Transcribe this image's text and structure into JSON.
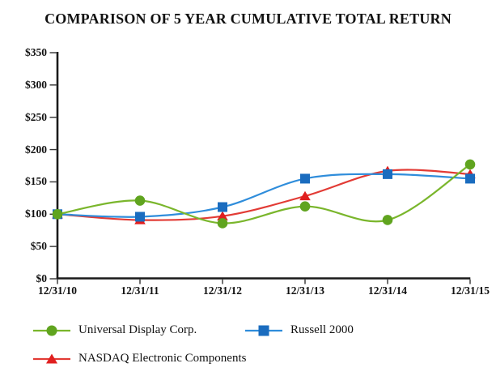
{
  "chart_data": {
    "type": "line",
    "title": "COMPARISON OF 5 YEAR CUMULATIVE TOTAL RETURN",
    "categories": [
      "12/31/10",
      "12/31/11",
      "12/31/12",
      "12/31/13",
      "12/31/14",
      "12/31/15"
    ],
    "series": [
      {
        "name": "Universal Display Corp.",
        "marker": "circle",
        "line_color": "#7ab62c",
        "marker_color": "#60a41f",
        "values": [
          100,
          121,
          86,
          112,
          91,
          177
        ]
      },
      {
        "name": "Russell 2000",
        "marker": "square",
        "line_color": "#2f8ddb",
        "marker_color": "#1a6cbf",
        "values": [
          100,
          96,
          111,
          155,
          162,
          155
        ]
      },
      {
        "name": "NASDAQ Electronic Components",
        "marker": "triangle",
        "line_color": "#e23b35",
        "marker_color": "#e01f1f",
        "values": [
          100,
          91,
          97,
          128,
          167,
          162
        ]
      }
    ],
    "y_axis": {
      "tick_labels": [
        "$350",
        "$300",
        "$250",
        "$200",
        "$150",
        "$100",
        "$50",
        "$0"
      ],
      "tick_values": [
        350,
        300,
        250,
        200,
        150,
        100,
        50,
        0
      ],
      "ylim": [
        0,
        350
      ]
    },
    "xlabel": "",
    "ylabel": "",
    "grid": false,
    "legend_position": "bottom",
    "axis_color": "#1a1a1a"
  }
}
